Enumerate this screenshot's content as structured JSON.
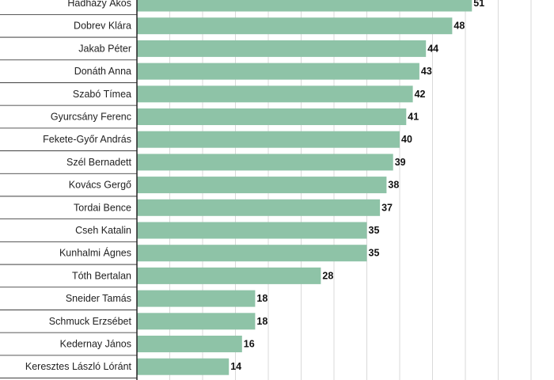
{
  "chart_data": {
    "type": "bar",
    "orientation": "horizontal",
    "categories": [
      "Hadházy Ákos",
      "Dobrev Klára",
      "Jakab Péter",
      "Donáth Anna",
      "Szabó Tímea",
      "Gyurcsány Ferenc",
      "Fekete-Győr András",
      "Szél Bernadett",
      "Kovács Gergő",
      "Tordai Bence",
      "Cseh Katalin",
      "Kunhalmi Ágnes",
      "Tóth Bertalan",
      "Sneider Tamás",
      "Schmuck Erzsébet",
      "Kedernay János",
      "Keresztes László Lóránt"
    ],
    "values": [
      51,
      48,
      44,
      43,
      42,
      41,
      40,
      39,
      38,
      37,
      35,
      35,
      28,
      18,
      18,
      16,
      14
    ],
    "xlim": [
      0,
      60
    ],
    "grid": true,
    "bar_color": "#8ec3a7",
    "grid_color": "#d9d9d9",
    "axis_color": "#222222"
  }
}
